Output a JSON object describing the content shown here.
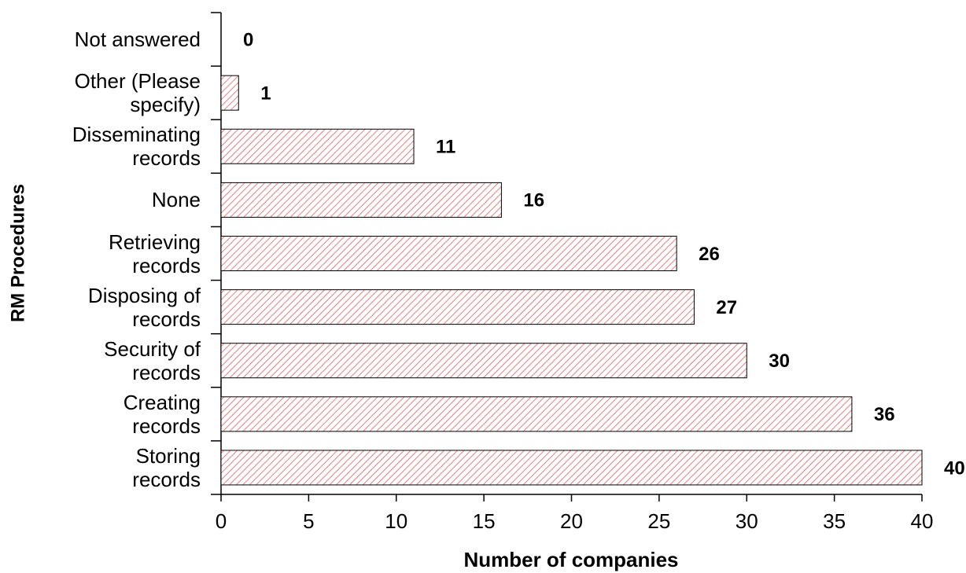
{
  "chart_data": {
    "type": "bar",
    "orientation": "horizontal",
    "y_label": "RM Procedures",
    "x_label": "Number of companies",
    "categories": [
      "Storing\nrecords",
      "Creating\nrecords",
      "Security of\nrecords",
      "Disposing of\nrecords",
      "Retrieving\nrecords",
      "None",
      "Disseminating\nrecords",
      "Other (Please\nspecify)",
      "Not answered"
    ],
    "values": [
      40,
      36,
      30,
      27,
      26,
      16,
      11,
      1,
      0
    ],
    "color": "#e06060",
    "xlim": [
      0,
      40
    ],
    "xticks": [
      0,
      5,
      10,
      15,
      20,
      25,
      30,
      35,
      40
    ]
  }
}
